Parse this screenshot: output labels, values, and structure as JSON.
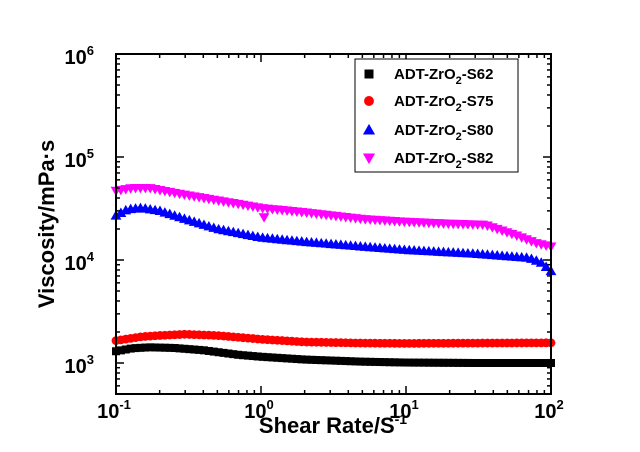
{
  "chart_data": {
    "type": "scatter",
    "title": "",
    "xlabel": {
      "text": "Shear Rate/S",
      "sup": "-1"
    },
    "ylabel": "Viscosity/mPa·s",
    "x_scale": "log",
    "y_scale": "log",
    "xlim": [
      0.1,
      100
    ],
    "ylim": [
      500,
      1000000
    ],
    "x_ticks": [
      {
        "value": 0.1,
        "base": "10",
        "exp": "-1"
      },
      {
        "value": 1,
        "base": "10",
        "exp": "0"
      },
      {
        "value": 10,
        "base": "10",
        "exp": "1"
      },
      {
        "value": 100,
        "base": "10",
        "exp": "2"
      }
    ],
    "y_ticks": [
      {
        "value": 1000,
        "base": "10",
        "exp": "3"
      },
      {
        "value": 10000,
        "base": "10",
        "exp": "4"
      },
      {
        "value": 100000,
        "base": "10",
        "exp": "5"
      },
      {
        "value": 1000000,
        "base": "10",
        "exp": "6"
      }
    ],
    "grid": false,
    "legend_position": "top-right",
    "series": [
      {
        "name": {
          "pre": "ADT-ZrO",
          "sub": "2",
          "post": "-S62"
        },
        "marker": "square",
        "color": "#000000",
        "curve": [
          [
            0.1,
            1300
          ],
          [
            0.13,
            1390
          ],
          [
            0.17,
            1420
          ],
          [
            0.25,
            1400
          ],
          [
            0.4,
            1330
          ],
          [
            0.7,
            1200
          ],
          [
            1.0,
            1150
          ],
          [
            2.0,
            1080
          ],
          [
            5.0,
            1030
          ],
          [
            10,
            1010
          ],
          [
            30,
            1000
          ],
          [
            100,
            1000
          ]
        ]
      },
      {
        "name": {
          "pre": "ADT-ZrO",
          "sub": "2",
          "post": "-S75"
        },
        "marker": "circle",
        "color": "#ff0000",
        "curve": [
          [
            0.1,
            1650
          ],
          [
            0.15,
            1800
          ],
          [
            0.2,
            1850
          ],
          [
            0.3,
            1900
          ],
          [
            0.5,
            1850
          ],
          [
            1.0,
            1700
          ],
          [
            2.0,
            1600
          ],
          [
            5.0,
            1560
          ],
          [
            10,
            1550
          ],
          [
            30,
            1560
          ],
          [
            100,
            1570
          ]
        ]
      },
      {
        "name": {
          "pre": "ADT-ZrO",
          "sub": "2",
          "post": "-S80"
        },
        "marker": "triangle-up",
        "color": "#0000ff",
        "curve": [
          [
            0.1,
            27000
          ],
          [
            0.12,
            31000
          ],
          [
            0.15,
            32000
          ],
          [
            0.2,
            30000
          ],
          [
            0.3,
            25000
          ],
          [
            0.5,
            20000
          ],
          [
            1.0,
            16500
          ],
          [
            2.0,
            15000
          ],
          [
            5.0,
            13500
          ],
          [
            10,
            12500
          ],
          [
            30,
            11500
          ],
          [
            70,
            10500
          ],
          [
            85,
            9500
          ],
          [
            100,
            7800
          ]
        ]
      },
      {
        "name": {
          "pre": "ADT-ZrO",
          "sub": "2",
          "post": "-S82"
        },
        "marker": "triangle-down",
        "color": "#ff00ff",
        "curve": [
          [
            0.1,
            47000
          ],
          [
            0.13,
            50000
          ],
          [
            0.17,
            50000
          ],
          [
            0.25,
            45000
          ],
          [
            0.4,
            40000
          ],
          [
            0.7,
            35000
          ],
          [
            1.0,
            32000
          ],
          [
            2.0,
            29000
          ],
          [
            5.0,
            25000
          ],
          [
            10,
            23500
          ],
          [
            20,
            22500
          ],
          [
            35,
            22000
          ],
          [
            45,
            19500
          ],
          [
            60,
            17000
          ],
          [
            80,
            14500
          ],
          [
            100,
            13500
          ]
        ]
      }
    ],
    "annotations": [
      {
        "series": 3,
        "x": 1.05,
        "y": 26000,
        "note": "isolated outlier point"
      }
    ]
  }
}
